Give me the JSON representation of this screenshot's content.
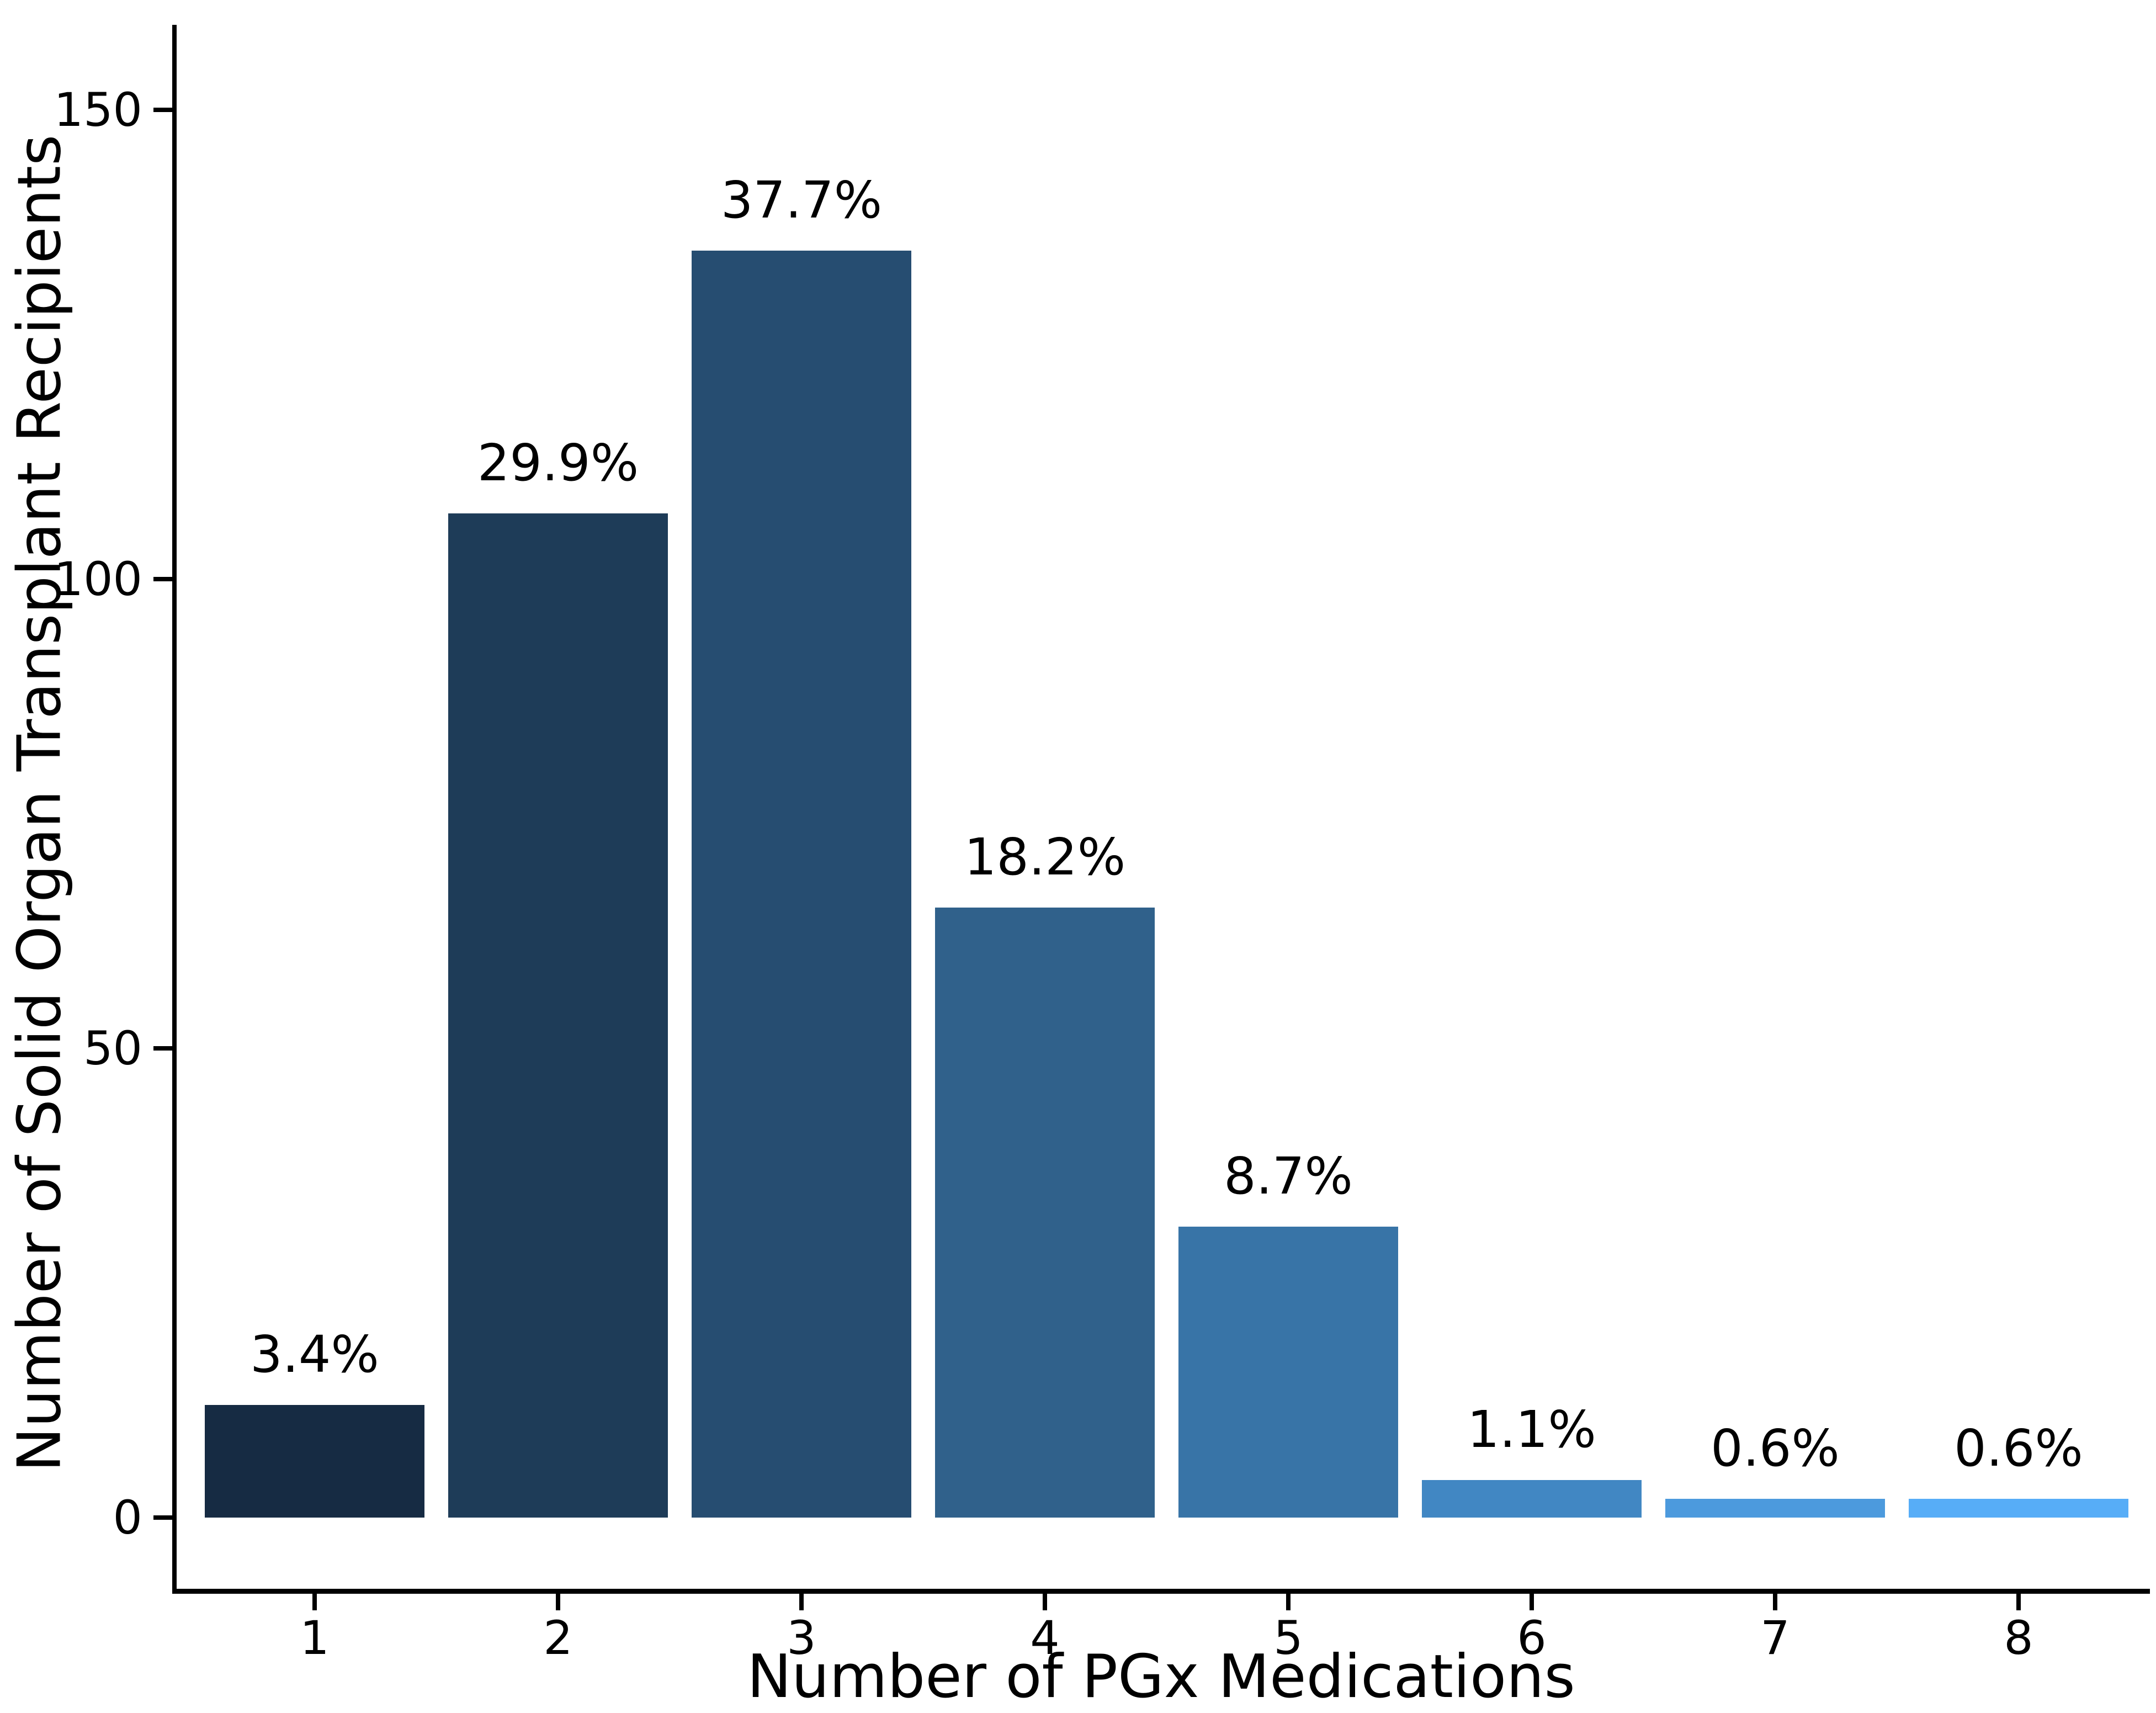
{
  "chart_data": {
    "type": "bar",
    "title": "",
    "xlabel": "Number of PGx Medications",
    "ylabel": "Number of Solid Organ Transplant Recipients",
    "categories": [
      "1",
      "2",
      "3",
      "4",
      "5",
      "6",
      "7",
      "8"
    ],
    "values": [
      12,
      107,
      135,
      65,
      31,
      4,
      2,
      2
    ],
    "bar_labels": [
      "3.4%",
      "29.9%",
      "37.7%",
      "18.2%",
      "8.7%",
      "1.1%",
      "0.6%",
      "0.6%"
    ],
    "bar_colors": [
      "#162b43",
      "#1e3c58",
      "#264d71",
      "#30618b",
      "#3874a7",
      "#4187c3",
      "#4c9add",
      "#57adf7"
    ],
    "y_ticks": [
      0,
      50,
      100,
      150
    ],
    "ylim": [
      0,
      150
    ],
    "grid": false,
    "legend_position": "none"
  },
  "colors": {
    "background": "#ffffff",
    "axis": "#000000",
    "text": "#000000"
  }
}
